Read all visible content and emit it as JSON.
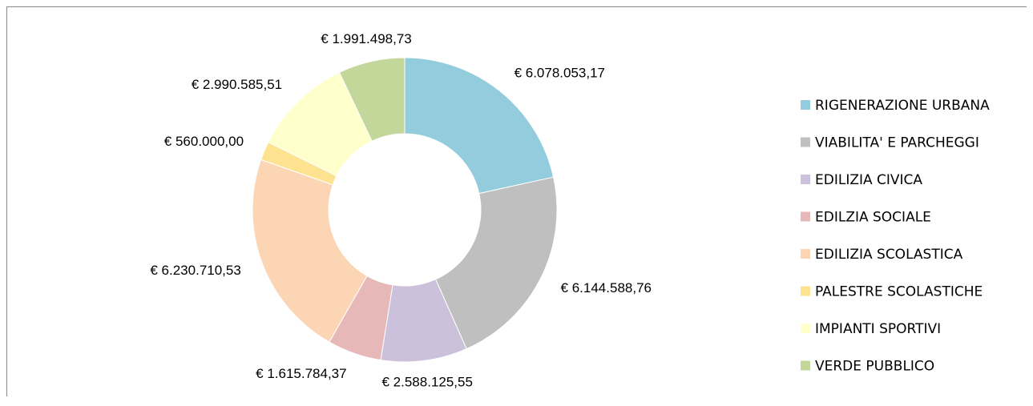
{
  "chart_data": {
    "type": "pie",
    "donut": true,
    "legend": "right",
    "categories": [
      "RIGENERAZIONE URBANA",
      "VIABILITA' E PARCHEGGI",
      "EDILIZIA CIVICA",
      "EDILZIA SOCIALE",
      "EDILIZIA SCOLASTICA",
      "PALESTRE SCOLASTICHE",
      "IMPIANTI SPORTIVI",
      "VERDE PUBBLICO"
    ],
    "values": [
      6078053.17,
      6144588.76,
      2588125.55,
      1615784.37,
      6230710.53,
      560000.0,
      2990585.51,
      1991498.73
    ],
    "value_labels": [
      "€ 6.078.053,17",
      "€ 6.144.588,76",
      "€ 2.588.125,55",
      "€ 1.615.784,37",
      "€ 6.230.710,53",
      "€ 560.000,00",
      "€ 2.990.585,51",
      "€ 1.991.498,73"
    ],
    "colors": [
      "#93cddd",
      "#bfbfbf",
      "#ccc1da",
      "#e6b9b8",
      "#fcd5b5",
      "#fde38f",
      "#ffffcc",
      "#c4d79b"
    ]
  }
}
